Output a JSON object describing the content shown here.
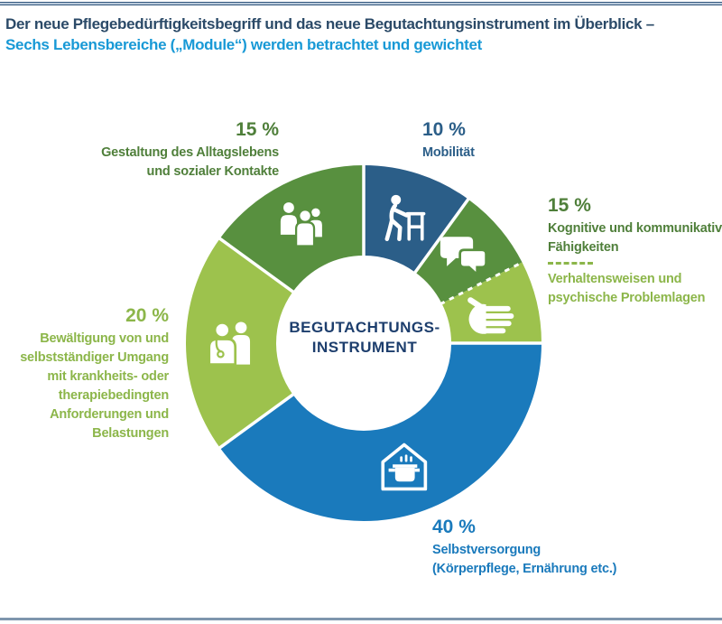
{
  "header": {
    "title_line1": "Der neue Pflegebedürftigkeitsbegriff und das neue Begutachtungsinstrument im Überblick –",
    "title_line2": "Sechs Lebensbereiche („Module“) werden betrachtet und gewichtet"
  },
  "colors": {
    "dark_blue": "#2b5e88",
    "mid_green": "#58903f",
    "light_green": "#9dc24d",
    "bright_blue": "#1a7abc",
    "title_navy": "#2b4a68",
    "title_light_blue": "#1899d6",
    "center_navy": "#1d3e6d",
    "text_dark_green": "#4f7f3a",
    "text_light_green": "#8cb64a",
    "rule_top_dark": "#34587e",
    "rule_top_light": "#b9c9da",
    "rule_bottom": "#7e96ad"
  },
  "chart_data": {
    "type": "pie",
    "subtype": "donut",
    "title": "Sechs Lebensbereiche („Module“) werden betrachtet und gewichtet",
    "center_label": [
      "BEGUTACHTUNGS-",
      "INSTRUMENT"
    ],
    "start_angle_deg": 0,
    "legend_position": "around",
    "dashed_divider_after_index": 1,
    "segments": [
      {
        "name": "mobilitaet",
        "label": "Mobilität",
        "percent_label": "10 %",
        "value": 10,
        "color_key": "dark_blue",
        "icon": "walker-person"
      },
      {
        "name": "kognitive-und-kommunikative-faehigkeiten",
        "label": "Kognitive und kommunikative Fähigkeiten",
        "percent_label": "15 %",
        "value": 7.5,
        "color_key": "mid_green",
        "icon": "speech-bubbles"
      },
      {
        "name": "verhaltensweisen-und-psychische-problemlagen",
        "label": "Verhaltensweisen und psychische Problemlagen",
        "percent_label": "15 %",
        "value": 7.5,
        "color_key": "light_green",
        "icon": "hand"
      },
      {
        "name": "selbstversorgung",
        "label": "Selbstversorgung (Körperpflege, Ernährung etc.)",
        "percent_label": "40 %",
        "value": 40,
        "color_key": "bright_blue",
        "icon": "house-pot"
      },
      {
        "name": "bewaeltigung",
        "label": "Bewältigung von und selbstständiger Umgang mit krankheits- oder therapiebedingten Anforderungen und Belastungen",
        "percent_label": "20 %",
        "value": 20,
        "color_key": "light_green",
        "icon": "doctor-patient"
      },
      {
        "name": "gestaltung-des-alltagslebens",
        "label": "Gestaltung des Alltagslebens und sozialer Kontakte",
        "percent_label": "15 %",
        "value": 15,
        "color_key": "mid_green",
        "icon": "people-group"
      }
    ]
  },
  "callouts": {
    "gestaltung": {
      "percent": "15 %",
      "line1": "Gestaltung des Alltagslebens",
      "line2": "und sozialer Kontakte"
    },
    "mobilitaet": {
      "percent": "10 %",
      "line1": "Mobilität"
    },
    "kognitive": {
      "percent": "15 %",
      "line1": "Kognitive und kommunikative",
      "line2": "Fähigkeiten",
      "line3": "Verhaltensweisen und",
      "line4": "psychische Problemlagen"
    },
    "bewaeltigung": {
      "percent": "20 %",
      "line1": "Bewältigung von und",
      "line2": "selbstständiger Umgang",
      "line3": "mit krankheits- oder",
      "line4": "therapiebedingten",
      "line5": "Anforderungen und",
      "line6": "Belastungen"
    },
    "selbstversorgung": {
      "percent": "40 %",
      "line1": "Selbstversorgung",
      "line2": "(Körperpflege, Ernährung etc.)"
    }
  }
}
